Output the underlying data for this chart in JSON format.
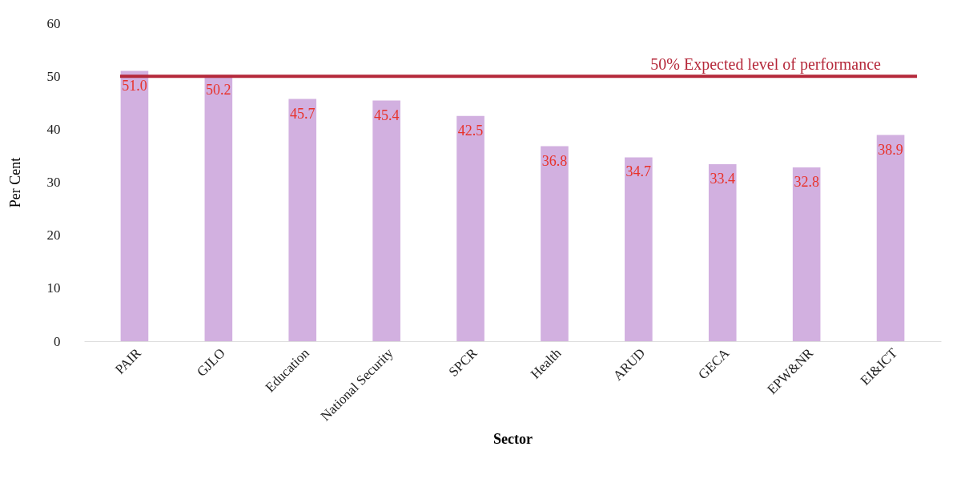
{
  "chart_data": {
    "type": "bar",
    "xlabel": "Sector",
    "ylabel": "Per Cent",
    "categories": [
      "PAIR",
      "GJLO",
      "Education",
      "National Security",
      "SPCR",
      "Health",
      "ARUD",
      "GECA",
      "EPW&NR",
      "EI&ICT"
    ],
    "values": [
      51.0,
      50.2,
      45.7,
      45.4,
      42.5,
      36.8,
      34.7,
      33.4,
      32.8,
      38.9
    ],
    "color": "#d2b0e0",
    "value_labels": [
      "51.0",
      "50.2",
      "45.7",
      "45.4",
      "42.5",
      "36.8",
      "34.7",
      "33.4",
      "32.8",
      "38.9"
    ],
    "ylim": [
      0,
      60
    ],
    "yticks": [
      0,
      10,
      20,
      30,
      40,
      50,
      60
    ],
    "grid": false,
    "ref_lines": [
      {
        "axis": "y",
        "value": 50,
        "label": "50% Expected level of performance",
        "color": "#b5283a"
      }
    ]
  }
}
